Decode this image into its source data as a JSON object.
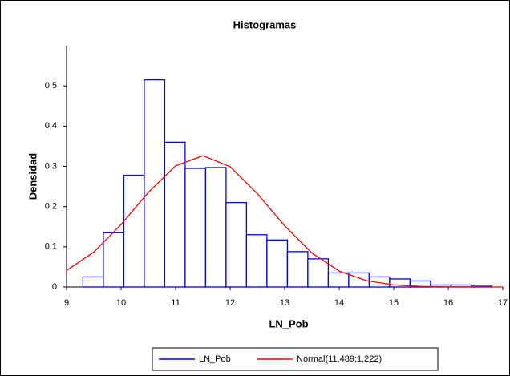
{
  "chart_data": {
    "type": "histogram",
    "title": "Histogramas",
    "xlabel": "LN_Pob",
    "ylabel": "Densidad",
    "bins": [
      9.3,
      9.675,
      10.05,
      10.425,
      10.8,
      11.175,
      11.55,
      11.925,
      12.3,
      12.675,
      13.05,
      13.425,
      13.8,
      14.175,
      14.55,
      14.925,
      15.3,
      15.675,
      16.05,
      16.425,
      16.8
    ],
    "series": [
      {
        "name": "LN_Pob",
        "color": "#0000ff",
        "values": [
          0.025,
          0.135,
          0.278,
          0.515,
          0.36,
          0.295,
          0.297,
          0.21,
          0.13,
          0.117,
          0.088,
          0.07,
          0.035,
          0.035,
          0.025,
          0.02,
          0.015,
          0.005,
          0.005,
          0.002
        ]
      },
      {
        "name": "Normal(11,489;1,222)",
        "color": "#ff0000",
        "x": [
          9,
          9.5,
          10,
          10.5,
          11,
          11.5,
          12,
          12.5,
          13,
          13.5,
          14,
          14.5,
          15,
          15.5,
          16,
          16.5,
          17
        ],
        "values": [
          0.041,
          0.0868,
          0.1555,
          0.2354,
          0.3014,
          0.3265,
          0.2991,
          0.2319,
          0.1521,
          0.0843,
          0.0395,
          0.0157,
          0.0053,
          0.0015,
          0.0004,
          0.0001,
          0
        ]
      }
    ],
    "xlim": [
      9,
      17
    ],
    "xticks": [
      9,
      10,
      11,
      12,
      13,
      14,
      15,
      16,
      17
    ],
    "ylim": [
      0,
      0.6
    ],
    "yticks": [
      0,
      {
        "value": 0.1,
        "label": "0,1"
      },
      {
        "value": 0.2,
        "label": "0,2"
      },
      {
        "value": 0.3,
        "label": "0,3"
      },
      {
        "value": 0.4,
        "label": "0,4"
      },
      {
        "value": 0.5,
        "label": "0,5"
      }
    ]
  }
}
